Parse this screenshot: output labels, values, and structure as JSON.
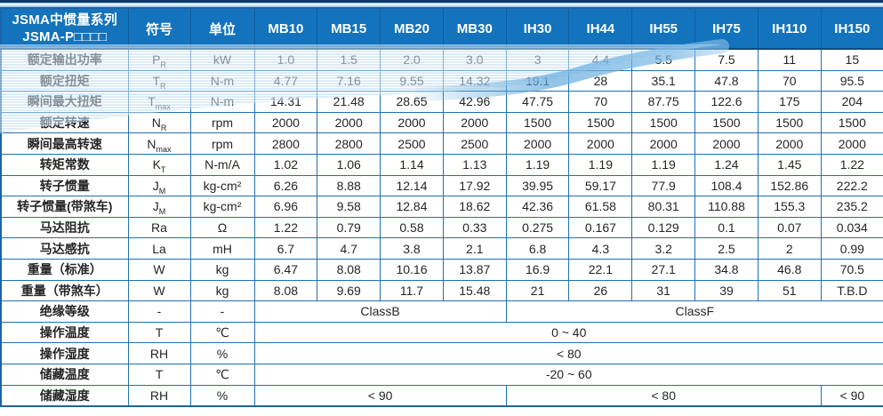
{
  "table": {
    "title_line1": "JSMA中惯量系列",
    "title_line2": "JSMA-P□□□□",
    "symbol_header": "符号",
    "unit_header": "单位",
    "models": [
      "MB10",
      "MB15",
      "MB20",
      "MB30",
      "IH30",
      "IH44",
      "IH55",
      "IH75",
      "IH110",
      "IH150"
    ],
    "rows": [
      {
        "label": "额定输出功率",
        "symbol": "P",
        "subscript": "R",
        "unit": "kW",
        "values": [
          "1.0",
          "1.5",
          "2.0",
          "3.0",
          "3",
          "4.4",
          "5.5",
          "7.5",
          "11",
          "15"
        ]
      },
      {
        "label": "额定扭矩",
        "symbol": "T",
        "subscript": "R",
        "unit": "N-m",
        "values": [
          "4.77",
          "7.16",
          "9.55",
          "14.32",
          "19.1",
          "28",
          "35.1",
          "47.8",
          "70",
          "95.5"
        ]
      },
      {
        "label": "瞬间最大扭矩",
        "symbol": "T",
        "subscript": "max",
        "unit": "N-m",
        "values": [
          "14.31",
          "21.48",
          "28.65",
          "42.96",
          "47.75",
          "70",
          "87.75",
          "122.6",
          "175",
          "204"
        ]
      },
      {
        "label": "额定转速",
        "symbol": "N",
        "subscript": "R",
        "unit": "rpm",
        "values": [
          "2000",
          "2000",
          "2000",
          "2000",
          "1500",
          "1500",
          "1500",
          "1500",
          "1500",
          "1500"
        ]
      },
      {
        "label": "瞬间最高转速",
        "symbol": "N",
        "subscript": "max",
        "unit": "rpm",
        "values": [
          "2800",
          "2800",
          "2500",
          "2500",
          "2000",
          "2000",
          "2000",
          "2000",
          "2000",
          "2000"
        ]
      },
      {
        "label": "转矩常数",
        "symbol": "K",
        "subscript": "T",
        "unit": "N-m/A",
        "values": [
          "1.02",
          "1.06",
          "1.14",
          "1.13",
          "1.19",
          "1.19",
          "1.19",
          "1.24",
          "1.45",
          "1.22"
        ]
      },
      {
        "label": "转子惯量",
        "symbol": "J",
        "subscript": "M",
        "unit": "kg-cm²",
        "values": [
          "6.26",
          "8.88",
          "12.14",
          "17.92",
          "39.95",
          "59.17",
          "77.9",
          "108.4",
          "152.86",
          "222.2"
        ]
      },
      {
        "label": "转子惯量(带煞车)",
        "symbol": "J",
        "subscript": "M",
        "unit": "kg-cm²",
        "values": [
          "6.96",
          "9.58",
          "12.84",
          "18.62",
          "42.36",
          "61.58",
          "80.31",
          "110.88",
          "155.3",
          "235.2"
        ]
      },
      {
        "label": "马达阻抗",
        "symbol": "Ra",
        "subscript": "",
        "unit": "Ω",
        "values": [
          "1.22",
          "0.79",
          "0.58",
          "0.33",
          "0.275",
          "0.167",
          "0.129",
          "0.1",
          "0.07",
          "0.034"
        ]
      },
      {
        "label": "马达感抗",
        "symbol": "La",
        "subscript": "",
        "unit": "mH",
        "values": [
          "6.7",
          "4.7",
          "3.8",
          "2.1",
          "6.8",
          "4.3",
          "3.2",
          "2.5",
          "2",
          "0.99"
        ]
      },
      {
        "label": "重量（标准）",
        "symbol": "W",
        "subscript": "",
        "unit": "kg",
        "values": [
          "6.47",
          "8.08",
          "10.16",
          "13.87",
          "16.9",
          "22.1",
          "27.1",
          "34.8",
          "46.8",
          "70.5"
        ]
      },
      {
        "label": "重量（带煞车）",
        "symbol": "W",
        "subscript": "",
        "unit": "kg",
        "values": [
          "8.08",
          "9.69",
          "11.7",
          "15.48",
          "21",
          "26",
          "31",
          "39",
          "51",
          "T.B.D"
        ]
      },
      {
        "label": "绝缘等级",
        "symbol": "-",
        "subscript": "",
        "unit": "-",
        "spans": [
          {
            "text": "ClassB",
            "cols": 4
          },
          {
            "text": "ClassF",
            "cols": 6
          }
        ]
      },
      {
        "label": "操作温度",
        "symbol": "T",
        "subscript": "",
        "unit": "℃",
        "spans": [
          {
            "text": "0 ~ 40",
            "cols": 10
          }
        ]
      },
      {
        "label": "操作湿度",
        "symbol": "RH",
        "subscript": "",
        "unit": "%",
        "spans": [
          {
            "text": "< 80",
            "cols": 10
          }
        ]
      },
      {
        "label": "储藏温度",
        "symbol": "T",
        "subscript": "",
        "unit": "℃",
        "spans": [
          {
            "text": "-20 ~ 60",
            "cols": 10
          }
        ]
      },
      {
        "label": "储藏湿度",
        "symbol": "RH",
        "subscript": "",
        "unit": "%",
        "spans": [
          {
            "text": "< 90",
            "cols": 4
          },
          {
            "text": "< 80",
            "cols": 5
          },
          {
            "text": "< 90",
            "cols": 1
          }
        ]
      }
    ]
  },
  "colors": {
    "header_bg": "#1373bd",
    "grid_border": "#2470ae",
    "outer_border": "#1d63a6",
    "header_divider": "#0f5d9e",
    "top_accent_line": "#0d3c6b",
    "wave_light": "#c2ddf1",
    "wave_deep": "#5ea8dc",
    "header_text": "#ffffff",
    "body_text": "#262626"
  }
}
